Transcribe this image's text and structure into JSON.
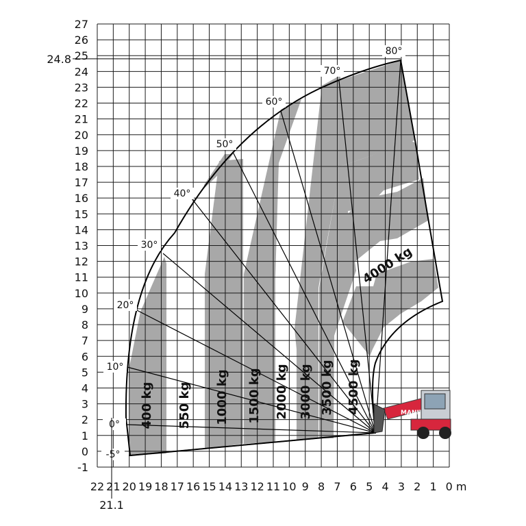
{
  "chart_data": {
    "type": "load_chart",
    "x_axis": {
      "tick_labels": [
        "22",
        "21",
        "20",
        "19",
        "18",
        "17",
        "16",
        "15",
        "14",
        "13",
        "12",
        "11",
        "10",
        "9",
        "8",
        "7",
        "6",
        "5",
        "4",
        "3",
        "2",
        "1",
        "0 m"
      ],
      "range": [
        22,
        0
      ],
      "extra_label": "21.1"
    },
    "y_axis": {
      "tick_labels": [
        "-1",
        "0",
        "1",
        "2",
        "3",
        "4",
        "5",
        "6",
        "7",
        "8",
        "9",
        "10",
        "11",
        "12",
        "13",
        "14",
        "15",
        "16",
        "17",
        "18",
        "19",
        "20",
        "21",
        "22",
        "23",
        "24",
        "25",
        "26",
        "27"
      ],
      "range": [
        -1,
        27
      ],
      "extra_label": "24.8"
    },
    "grid": true,
    "max_height": 24.8,
    "max_reach": 21.1,
    "angle_labels": [
      {
        "label": "-5°",
        "angle": -5
      },
      {
        "label": "0°",
        "angle": 0
      },
      {
        "label": "10°",
        "angle": 10
      },
      {
        "label": "20°",
        "angle": 20
      },
      {
        "label": "30°",
        "angle": 30
      },
      {
        "label": "40°",
        "angle": 40
      },
      {
        "label": "50°",
        "angle": 50
      },
      {
        "label": "60°",
        "angle": 60
      },
      {
        "label": "70°",
        "angle": 70
      },
      {
        "label": "80°",
        "angle": 80
      }
    ],
    "load_zones": [
      {
        "label": "400 kg",
        "reach_from": 21.1,
        "reach_to": 19
      },
      {
        "label": "550 kg",
        "reach_from": 19,
        "reach_to": 16.5
      },
      {
        "label": "1000 kg",
        "reach_from": 16.5,
        "reach_to": 14
      },
      {
        "label": "1500 kg",
        "reach_from": 14,
        "reach_to": 12.2
      },
      {
        "label": "2000 kg",
        "reach_from": 12.2,
        "reach_to": 10.2
      },
      {
        "label": "3000 kg",
        "reach_from": 10.2,
        "reach_to": 8.7
      },
      {
        "label": "3500 kg",
        "reach_from": 8.7,
        "reach_to": 7.7
      },
      {
        "label": "4500 kg",
        "reach_from": 7.7,
        "reach_to": 5
      },
      {
        "label": "4000 kg",
        "reach_from": 6.5,
        "reach_to": 1
      }
    ],
    "colors": {
      "shaded_zone": "#a8a8a8",
      "grid": "#1a1a1a",
      "machine": "#d7263d"
    }
  }
}
